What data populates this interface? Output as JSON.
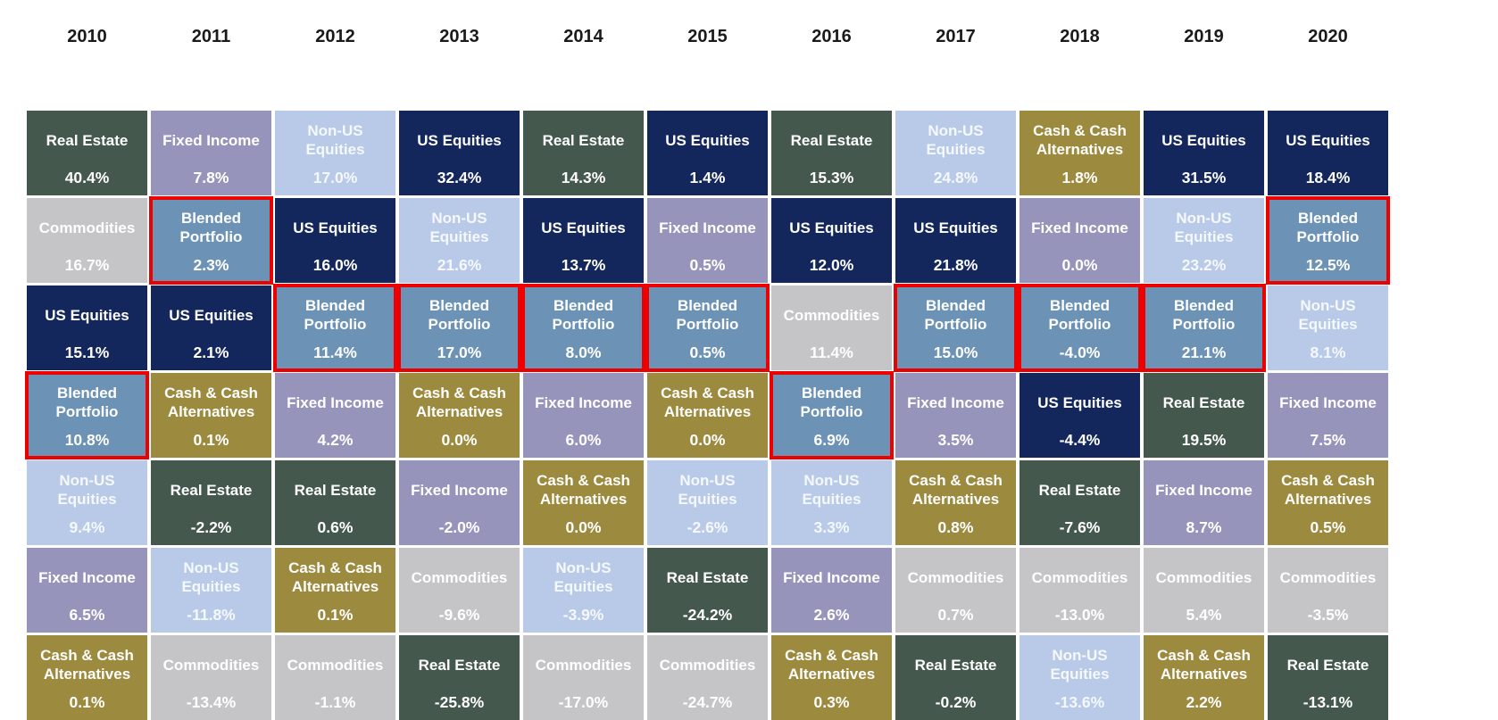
{
  "highlight_border_color": "#EC0000",
  "page_background": "#FFFFFF",
  "year_label_color": "#1A1A1A",
  "asset_styles": {
    "Real Estate": {
      "bg": "#45584E",
      "fg": "#FFFFFF",
      "highlight": false
    },
    "Fixed Income": {
      "bg": "#9794BB",
      "fg": "#FFFFFF",
      "highlight": false
    },
    "Non-US Equities": {
      "bg": "#B8CAE8",
      "fg": "#F5F8FC",
      "highlight": false
    },
    "US Equities": {
      "bg": "#13275D",
      "fg": "#FFFFFF",
      "highlight": false
    },
    "Commodities": {
      "bg": "#C5C4C6",
      "fg": "#FFFFFF",
      "highlight": false
    },
    "Blended Portfolio": {
      "bg": "#6C92B5",
      "fg": "#FFFFFF",
      "highlight": true
    },
    "Cash & Cash Alternatives": {
      "bg": "#9C8A3E",
      "fg": "#FFFFFF",
      "highlight": false
    }
  },
  "chart_data": {
    "type": "heatmap",
    "title": "Asset class annual returns ranked best to worst by year",
    "x": [
      "2010",
      "2011",
      "2012",
      "2013",
      "2014",
      "2015",
      "2016",
      "2017",
      "2018",
      "2019",
      "2020"
    ],
    "legend_position": "none",
    "grid": false,
    "columns": [
      {
        "year": "2010",
        "ranking": [
          {
            "asset": "Real Estate",
            "value": 40.4,
            "display": "40.4%"
          },
          {
            "asset": "Commodities",
            "value": 16.7,
            "display": "16.7%"
          },
          {
            "asset": "US Equities",
            "value": 15.1,
            "display": "15.1%"
          },
          {
            "asset": "Blended Portfolio",
            "value": 10.8,
            "display": "10.8%"
          },
          {
            "asset": "Non-US Equities",
            "value": 9.4,
            "display": "9.4%"
          },
          {
            "asset": "Fixed Income",
            "value": 6.5,
            "display": "6.5%"
          },
          {
            "asset": "Cash & Cash Alternatives",
            "value": 0.1,
            "display": "0.1%"
          }
        ]
      },
      {
        "year": "2011",
        "ranking": [
          {
            "asset": "Fixed Income",
            "value": 7.8,
            "display": "7.8%"
          },
          {
            "asset": "Blended Portfolio",
            "value": 2.3,
            "display": "2.3%"
          },
          {
            "asset": "US Equities",
            "value": 2.1,
            "display": "2.1%"
          },
          {
            "asset": "Cash & Cash Alternatives",
            "value": 0.1,
            "display": "0.1%"
          },
          {
            "asset": "Real Estate",
            "value": -2.2,
            "display": "-2.2%"
          },
          {
            "asset": "Non-US Equities",
            "value": -11.8,
            "display": "-11.8%"
          },
          {
            "asset": "Commodities",
            "value": -13.4,
            "display": "-13.4%"
          }
        ]
      },
      {
        "year": "2012",
        "ranking": [
          {
            "asset": "Non-US Equities",
            "value": 17.0,
            "display": "17.0%"
          },
          {
            "asset": "US Equities",
            "value": 16.0,
            "display": "16.0%"
          },
          {
            "asset": "Blended Portfolio",
            "value": 11.4,
            "display": "11.4%"
          },
          {
            "asset": "Fixed Income",
            "value": 4.2,
            "display": "4.2%"
          },
          {
            "asset": "Real Estate",
            "value": 0.6,
            "display": "0.6%"
          },
          {
            "asset": "Cash & Cash Alternatives",
            "value": 0.1,
            "display": "0.1%"
          },
          {
            "asset": "Commodities",
            "value": -1.1,
            "display": "-1.1%"
          }
        ]
      },
      {
        "year": "2013",
        "ranking": [
          {
            "asset": "US Equities",
            "value": 32.4,
            "display": "32.4%"
          },
          {
            "asset": "Non-US Equities",
            "value": 21.6,
            "display": "21.6%"
          },
          {
            "asset": "Blended Portfolio",
            "value": 17.0,
            "display": "17.0%"
          },
          {
            "asset": "Cash & Cash Alternatives",
            "value": 0.0,
            "display": "0.0%"
          },
          {
            "asset": "Fixed Income",
            "value": -2.0,
            "display": "-2.0%"
          },
          {
            "asset": "Commodities",
            "value": -9.6,
            "display": "-9.6%"
          },
          {
            "asset": "Real Estate",
            "value": -25.8,
            "display": "-25.8%"
          }
        ]
      },
      {
        "year": "2014",
        "ranking": [
          {
            "asset": "Real Estate",
            "value": 14.3,
            "display": "14.3%"
          },
          {
            "asset": "US Equities",
            "value": 13.7,
            "display": "13.7%"
          },
          {
            "asset": "Blended Portfolio",
            "value": 8.0,
            "display": "8.0%"
          },
          {
            "asset": "Fixed Income",
            "value": 6.0,
            "display": "6.0%"
          },
          {
            "asset": "Cash & Cash Alternatives",
            "value": 0.0,
            "display": "0.0%"
          },
          {
            "asset": "Non-US Equities",
            "value": -3.9,
            "display": "-3.9%"
          },
          {
            "asset": "Commodities",
            "value": -17.0,
            "display": "-17.0%"
          }
        ]
      },
      {
        "year": "2015",
        "ranking": [
          {
            "asset": "US Equities",
            "value": 1.4,
            "display": "1.4%"
          },
          {
            "asset": "Fixed Income",
            "value": 0.5,
            "display": "0.5%"
          },
          {
            "asset": "Blended Portfolio",
            "value": 0.5,
            "display": "0.5%"
          },
          {
            "asset": "Cash & Cash Alternatives",
            "value": 0.0,
            "display": "0.0%"
          },
          {
            "asset": "Non-US Equities",
            "value": -2.6,
            "display": "-2.6%"
          },
          {
            "asset": "Real Estate",
            "value": -24.2,
            "display": "-24.2%"
          },
          {
            "asset": "Commodities",
            "value": -24.7,
            "display": "-24.7%"
          }
        ]
      },
      {
        "year": "2016",
        "ranking": [
          {
            "asset": "Real Estate",
            "value": 15.3,
            "display": "15.3%"
          },
          {
            "asset": "US Equities",
            "value": 12.0,
            "display": "12.0%"
          },
          {
            "asset": "Commodities",
            "value": 11.4,
            "display": "11.4%"
          },
          {
            "asset": "Blended Portfolio",
            "value": 6.9,
            "display": "6.9%"
          },
          {
            "asset": "Non-US Equities",
            "value": 3.3,
            "display": "3.3%"
          },
          {
            "asset": "Fixed Income",
            "value": 2.6,
            "display": "2.6%"
          },
          {
            "asset": "Cash & Cash Alternatives",
            "value": 0.3,
            "display": "0.3%"
          }
        ]
      },
      {
        "year": "2017",
        "ranking": [
          {
            "asset": "Non-US Equities",
            "value": 24.8,
            "display": "24.8%"
          },
          {
            "asset": "US Equities",
            "value": 21.8,
            "display": "21.8%"
          },
          {
            "asset": "Blended Portfolio",
            "value": 15.0,
            "display": "15.0%"
          },
          {
            "asset": "Fixed Income",
            "value": 3.5,
            "display": "3.5%"
          },
          {
            "asset": "Cash & Cash Alternatives",
            "value": 0.8,
            "display": "0.8%"
          },
          {
            "asset": "Commodities",
            "value": 0.7,
            "display": "0.7%"
          },
          {
            "asset": "Real Estate",
            "value": -0.2,
            "display": "-0.2%"
          }
        ]
      },
      {
        "year": "2018",
        "ranking": [
          {
            "asset": "Cash & Cash Alternatives",
            "value": 1.8,
            "display": "1.8%"
          },
          {
            "asset": "Fixed Income",
            "value": 0.0,
            "display": "0.0%"
          },
          {
            "asset": "Blended Portfolio",
            "value": -4.0,
            "display": "-4.0%"
          },
          {
            "asset": "US Equities",
            "value": -4.4,
            "display": "-4.4%"
          },
          {
            "asset": "Real Estate",
            "value": -7.6,
            "display": "-7.6%"
          },
          {
            "asset": "Commodities",
            "value": -13.0,
            "display": "-13.0%"
          },
          {
            "asset": "Non-US Equities",
            "value": -13.6,
            "display": "-13.6%"
          }
        ]
      },
      {
        "year": "2019",
        "ranking": [
          {
            "asset": "US Equities",
            "value": 31.5,
            "display": "31.5%"
          },
          {
            "asset": "Non-US Equities",
            "value": 23.2,
            "display": "23.2%"
          },
          {
            "asset": "Blended Portfolio",
            "value": 21.1,
            "display": "21.1%"
          },
          {
            "asset": "Real Estate",
            "value": 19.5,
            "display": "19.5%"
          },
          {
            "asset": "Fixed Income",
            "value": 8.7,
            "display": "8.7%"
          },
          {
            "asset": "Commodities",
            "value": 5.4,
            "display": "5.4%"
          },
          {
            "asset": "Cash & Cash Alternatives",
            "value": 2.2,
            "display": "2.2%"
          }
        ]
      },
      {
        "year": "2020",
        "ranking": [
          {
            "asset": "US Equities",
            "value": 18.4,
            "display": "18.4%"
          },
          {
            "asset": "Blended Portfolio",
            "value": 12.5,
            "display": "12.5%"
          },
          {
            "asset": "Non-US Equities",
            "value": 8.1,
            "display": "8.1%"
          },
          {
            "asset": "Fixed Income",
            "value": 7.5,
            "display": "7.5%"
          },
          {
            "asset": "Cash & Cash Alternatives",
            "value": 0.5,
            "display": "0.5%"
          },
          {
            "asset": "Commodities",
            "value": -3.5,
            "display": "-3.5%"
          },
          {
            "asset": "Real Estate",
            "value": -13.1,
            "display": "-13.1%"
          }
        ]
      }
    ]
  }
}
